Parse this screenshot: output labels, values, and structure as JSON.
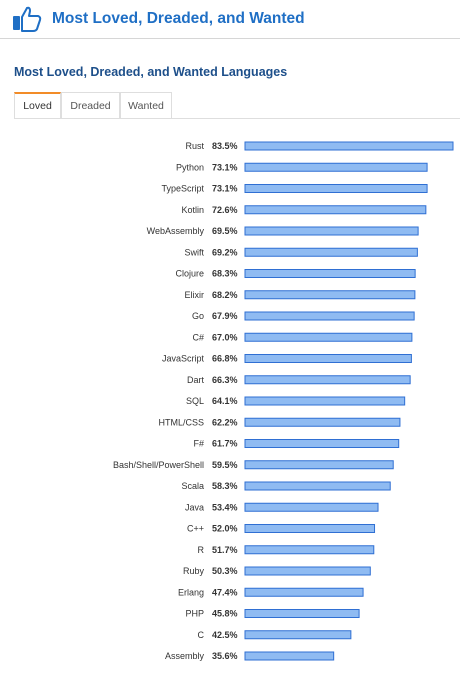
{
  "header": {
    "title": "Most Loved, Dreaded, and Wanted",
    "icon": "thumbs-up-icon",
    "color": "#1f6fc5"
  },
  "section": {
    "subtitle": "Most Loved, Dreaded, and Wanted Languages"
  },
  "tabs": [
    {
      "label": "Loved",
      "active": true
    },
    {
      "label": "Dreaded",
      "active": false
    },
    {
      "label": "Wanted",
      "active": false
    }
  ],
  "colors": {
    "bar_fill": "#8fbbf2",
    "bar_stroke": "#2f6fd3",
    "active_tab_accent": "#f28c28"
  },
  "chart_data": {
    "type": "bar",
    "orientation": "horizontal",
    "title": "",
    "xlabel": "",
    "ylabel": "",
    "xlim": [
      0,
      83.5
    ],
    "grid": false,
    "categories": [
      "Rust",
      "Python",
      "TypeScript",
      "Kotlin",
      "WebAssembly",
      "Swift",
      "Clojure",
      "Elixir",
      "Go",
      "C#",
      "JavaScript",
      "Dart",
      "SQL",
      "HTML/CSS",
      "F#",
      "Bash/Shell/PowerShell",
      "Scala",
      "Java",
      "C++",
      "R",
      "Ruby",
      "Erlang",
      "PHP",
      "C",
      "Assembly"
    ],
    "values": [
      83.5,
      73.1,
      73.1,
      72.6,
      69.5,
      69.2,
      68.3,
      68.2,
      67.9,
      67.0,
      66.8,
      66.3,
      64.1,
      62.2,
      61.7,
      59.5,
      58.3,
      53.4,
      52.0,
      51.7,
      50.3,
      47.4,
      45.8,
      42.5,
      35.6
    ],
    "value_labels": [
      "83.5%",
      "73.1%",
      "73.1%",
      "72.6%",
      "69.5%",
      "69.2%",
      "68.3%",
      "68.2%",
      "67.9%",
      "67.0%",
      "66.8%",
      "66.3%",
      "64.1%",
      "62.2%",
      "61.7%",
      "59.5%",
      "58.3%",
      "53.4%",
      "52.0%",
      "51.7%",
      "50.3%",
      "47.4%",
      "45.8%",
      "42.5%",
      "35.6%"
    ]
  }
}
